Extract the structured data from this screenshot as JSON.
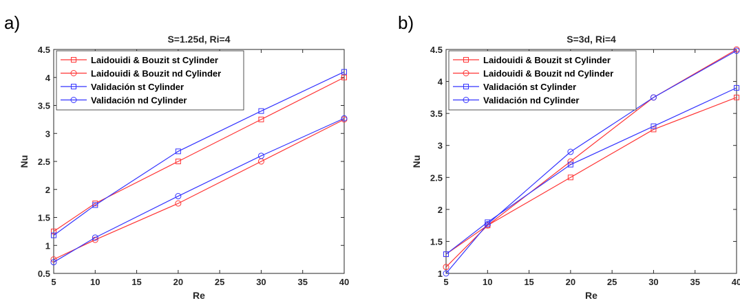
{
  "chart_data": [
    {
      "type": "line",
      "panel": "a)",
      "title": "S=1.25d, Ri=4",
      "xlabel": "Re",
      "ylabel": "Nu",
      "xlim": [
        5,
        40
      ],
      "ylim": [
        0.5,
        4.5
      ],
      "xticks": [
        "5",
        "10",
        "15",
        "20",
        "25",
        "30",
        "35",
        "40"
      ],
      "yticks": [
        "0.5",
        "1",
        "1.5",
        "2",
        "2.5",
        "3",
        "3.5",
        "4",
        "4.5"
      ],
      "x": [
        5,
        10,
        20,
        30,
        40
      ],
      "legend_position": "top-left",
      "grid": false,
      "series": [
        {
          "name": "Laidouidi & Bouzit st Cylinder",
          "color": "#ff3333",
          "marker": "square",
          "values": [
            1.25,
            1.75,
            2.5,
            3.25,
            4.0
          ]
        },
        {
          "name": "Laidouidi & Bouzit nd Cylinder",
          "color": "#ff3333",
          "marker": "circle",
          "values": [
            0.75,
            1.1,
            1.75,
            2.5,
            3.25
          ]
        },
        {
          "name": "Validación st Cylinder",
          "color": "#3333ff",
          "marker": "square",
          "values": [
            1.18,
            1.72,
            2.68,
            3.4,
            4.1
          ]
        },
        {
          "name": "Validación nd Cylinder",
          "color": "#3333ff",
          "marker": "circle",
          "values": [
            0.7,
            1.14,
            1.88,
            2.6,
            3.27
          ]
        }
      ]
    },
    {
      "type": "line",
      "panel": "b)",
      "title": "S=3d, Ri=4",
      "xlabel": "Re",
      "ylabel": "Nu",
      "xlim": [
        5,
        40
      ],
      "ylim": [
        1,
        4.5
      ],
      "xticks": [
        "5",
        "10",
        "15",
        "20",
        "25",
        "30",
        "35",
        "40"
      ],
      "yticks": [
        "1",
        "1.5",
        "2",
        "2.5",
        "3",
        "3.5",
        "4",
        "4.5"
      ],
      "x": [
        5,
        10,
        20,
        30,
        40
      ],
      "legend_position": "top-left",
      "grid": false,
      "series": [
        {
          "name": "Laidouidi & Bouzit st Cylinder",
          "color": "#ff3333",
          "marker": "square",
          "values": [
            1.3,
            1.75,
            2.5,
            3.25,
            3.75
          ]
        },
        {
          "name": "Laidouidi & Bouzit nd Cylinder",
          "color": "#ff3333",
          "marker": "circle",
          "values": [
            1.1,
            1.75,
            2.75,
            3.75,
            4.5
          ]
        },
        {
          "name": "Validación st Cylinder",
          "color": "#3333ff",
          "marker": "square",
          "values": [
            1.3,
            1.8,
            2.7,
            3.3,
            3.9
          ]
        },
        {
          "name": "Validación nd Cylinder",
          "color": "#3333ff",
          "marker": "circle",
          "values": [
            1.0,
            1.77,
            2.9,
            3.75,
            4.48
          ]
        }
      ]
    }
  ]
}
